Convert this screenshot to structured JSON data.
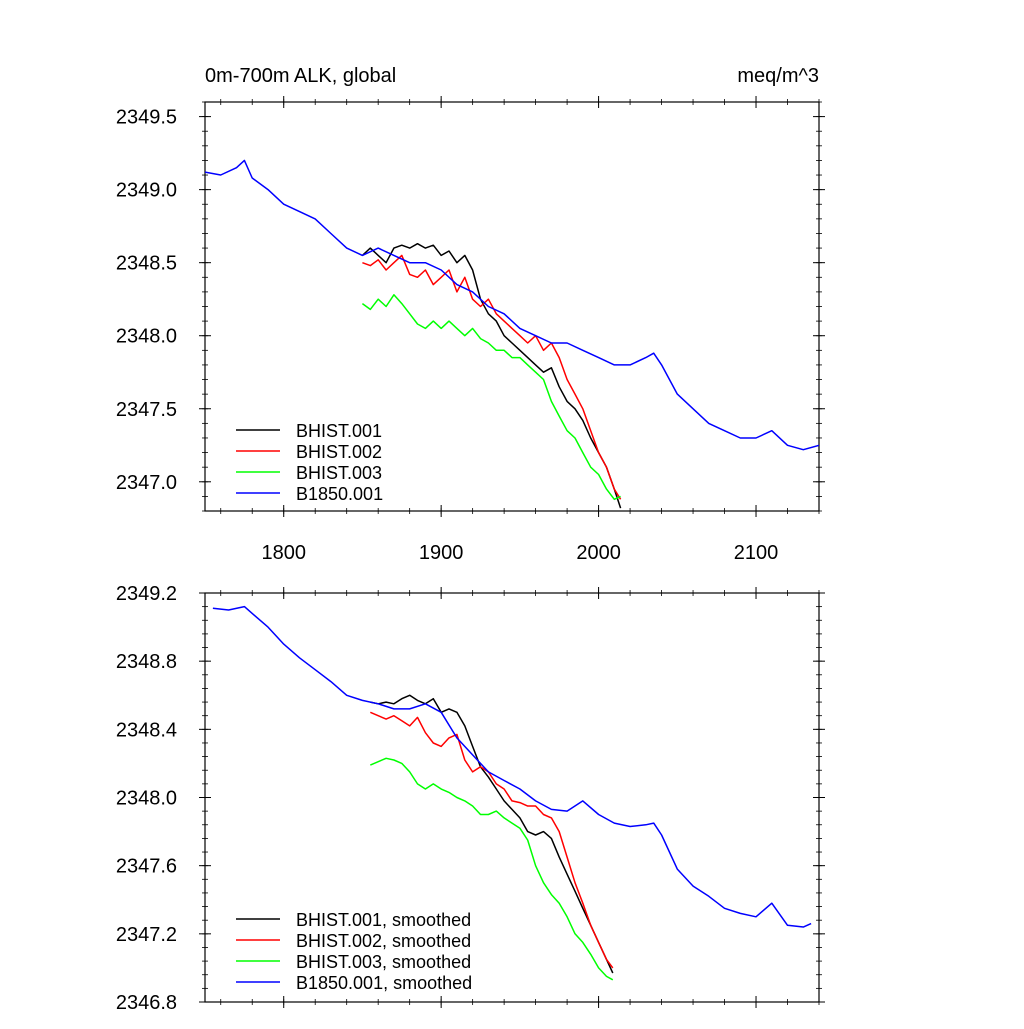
{
  "chart_data": [
    {
      "type": "line",
      "title": "0m-700m ALK, global",
      "units": "meq/m^3",
      "xlim": [
        1750,
        2140
      ],
      "ylim": [
        2346.8,
        2349.6
      ],
      "xticks": [
        1800,
        1900,
        2000,
        2100
      ],
      "yticks": [
        2347.0,
        2347.5,
        2348.0,
        2348.5,
        2349.0,
        2349.5
      ],
      "ytick_labels": [
        "2347.0",
        "2347.5",
        "2348.0",
        "2348.5",
        "2349.0",
        "2349.5"
      ],
      "show_xtick_labels": true,
      "legend_position": "bottom-left",
      "series": [
        {
          "name": "BHIST.001",
          "color": "#000000",
          "x": [
            1850,
            1855,
            1860,
            1865,
            1870,
            1875,
            1880,
            1885,
            1890,
            1895,
            1900,
            1905,
            1910,
            1915,
            1920,
            1925,
            1930,
            1935,
            1940,
            1945,
            1950,
            1955,
            1960,
            1965,
            1970,
            1975,
            1980,
            1985,
            1990,
            1995,
            2000,
            2005,
            2010,
            2014
          ],
          "y": [
            2348.55,
            2348.6,
            2348.55,
            2348.5,
            2348.6,
            2348.62,
            2348.6,
            2348.63,
            2348.6,
            2348.62,
            2348.55,
            2348.58,
            2348.5,
            2348.55,
            2348.45,
            2348.25,
            2348.15,
            2348.1,
            2348.0,
            2347.95,
            2347.9,
            2347.85,
            2347.8,
            2347.75,
            2347.78,
            2347.65,
            2347.55,
            2347.5,
            2347.42,
            2347.3,
            2347.2,
            2347.1,
            2346.95,
            2346.82
          ]
        },
        {
          "name": "BHIST.002",
          "color": "#ff0000",
          "x": [
            1850,
            1855,
            1860,
            1865,
            1870,
            1875,
            1880,
            1885,
            1890,
            1895,
            1900,
            1905,
            1910,
            1915,
            1920,
            1925,
            1930,
            1935,
            1940,
            1945,
            1950,
            1955,
            1960,
            1965,
            1970,
            1975,
            1980,
            1985,
            1990,
            1995,
            2000,
            2005,
            2010,
            2014
          ],
          "y": [
            2348.5,
            2348.48,
            2348.52,
            2348.45,
            2348.5,
            2348.55,
            2348.42,
            2348.4,
            2348.45,
            2348.35,
            2348.4,
            2348.45,
            2348.3,
            2348.4,
            2348.25,
            2348.2,
            2348.25,
            2348.15,
            2348.1,
            2348.05,
            2348.0,
            2347.95,
            2348.0,
            2347.9,
            2347.95,
            2347.85,
            2347.7,
            2347.6,
            2347.5,
            2347.35,
            2347.2,
            2347.1,
            2346.95,
            2346.88
          ]
        },
        {
          "name": "BHIST.003",
          "color": "#00ff00",
          "x": [
            1850,
            1855,
            1860,
            1865,
            1870,
            1875,
            1880,
            1885,
            1890,
            1895,
            1900,
            1905,
            1910,
            1915,
            1920,
            1925,
            1930,
            1935,
            1940,
            1945,
            1950,
            1955,
            1960,
            1965,
            1970,
            1975,
            1980,
            1985,
            1990,
            1995,
            2000,
            2005,
            2010,
            2014
          ],
          "y": [
            2348.22,
            2348.18,
            2348.25,
            2348.2,
            2348.28,
            2348.22,
            2348.15,
            2348.08,
            2348.05,
            2348.1,
            2348.05,
            2348.1,
            2348.05,
            2348.0,
            2348.05,
            2347.98,
            2347.95,
            2347.9,
            2347.9,
            2347.85,
            2347.85,
            2347.8,
            2347.75,
            2347.7,
            2347.55,
            2347.45,
            2347.35,
            2347.3,
            2347.2,
            2347.1,
            2347.05,
            2346.95,
            2346.88,
            2346.9
          ]
        },
        {
          "name": "B1850.001",
          "color": "#0000ff",
          "x": [
            1750,
            1760,
            1770,
            1775,
            1780,
            1790,
            1800,
            1810,
            1820,
            1830,
            1840,
            1850,
            1860,
            1870,
            1880,
            1890,
            1900,
            1910,
            1920,
            1930,
            1940,
            1950,
            1960,
            1970,
            1980,
            1990,
            2000,
            2010,
            2020,
            2030,
            2035,
            2040,
            2050,
            2060,
            2070,
            2080,
            2090,
            2100,
            2110,
            2120,
            2130,
            2140
          ],
          "y": [
            2349.12,
            2349.1,
            2349.15,
            2349.2,
            2349.08,
            2349.0,
            2348.9,
            2348.85,
            2348.8,
            2348.7,
            2348.6,
            2348.55,
            2348.6,
            2348.55,
            2348.5,
            2348.5,
            2348.45,
            2348.35,
            2348.3,
            2348.2,
            2348.15,
            2348.05,
            2348.0,
            2347.95,
            2347.95,
            2347.9,
            2347.85,
            2347.8,
            2347.8,
            2347.85,
            2347.88,
            2347.8,
            2347.6,
            2347.5,
            2347.4,
            2347.35,
            2347.3,
            2347.3,
            2347.35,
            2347.25,
            2347.22,
            2347.25
          ]
        }
      ]
    },
    {
      "type": "line",
      "xlim": [
        1750,
        2140
      ],
      "ylim": [
        2346.8,
        2349.2
      ],
      "xticks": [
        1800,
        1900,
        2000,
        2100
      ],
      "yticks": [
        2346.8,
        2347.2,
        2347.6,
        2348.0,
        2348.4,
        2348.8,
        2349.2
      ],
      "ytick_labels": [
        "2346.8",
        "2347.2",
        "2347.6",
        "2348.0",
        "2348.4",
        "2348.8",
        "2349.2"
      ],
      "show_xtick_labels": false,
      "legend_position": "bottom-left",
      "series": [
        {
          "name": "BHIST.001, smoothed",
          "color": "#000000",
          "x": [
            1855,
            1860,
            1865,
            1870,
            1875,
            1880,
            1885,
            1890,
            1895,
            1900,
            1905,
            1910,
            1915,
            1920,
            1925,
            1930,
            1935,
            1940,
            1945,
            1950,
            1955,
            1960,
            1965,
            1970,
            1975,
            1980,
            1985,
            1990,
            1995,
            2000,
            2005,
            2009
          ],
          "y": [
            2348.56,
            2348.55,
            2348.56,
            2348.55,
            2348.58,
            2348.6,
            2348.57,
            2348.55,
            2348.58,
            2348.5,
            2348.52,
            2348.5,
            2348.42,
            2348.3,
            2348.18,
            2348.12,
            2348.05,
            2347.98,
            2347.93,
            2347.88,
            2347.8,
            2347.78,
            2347.8,
            2347.76,
            2347.65,
            2347.55,
            2347.45,
            2347.35,
            2347.25,
            2347.15,
            2347.05,
            2346.97
          ]
        },
        {
          "name": "BHIST.002, smoothed",
          "color": "#ff0000",
          "x": [
            1855,
            1860,
            1865,
            1870,
            1875,
            1880,
            1885,
            1890,
            1895,
            1900,
            1905,
            1910,
            1915,
            1920,
            1925,
            1930,
            1935,
            1940,
            1945,
            1950,
            1955,
            1960,
            1965,
            1970,
            1975,
            1980,
            1985,
            1990,
            1995,
            2000,
            2005,
            2009
          ],
          "y": [
            2348.5,
            2348.48,
            2348.46,
            2348.48,
            2348.45,
            2348.42,
            2348.47,
            2348.38,
            2348.32,
            2348.3,
            2348.35,
            2348.37,
            2348.22,
            2348.15,
            2348.18,
            2348.15,
            2348.08,
            2348.05,
            2347.98,
            2347.97,
            2347.95,
            2347.95,
            2347.9,
            2347.88,
            2347.8,
            2347.65,
            2347.5,
            2347.38,
            2347.25,
            2347.15,
            2347.05,
            2347.0
          ]
        },
        {
          "name": "BHIST.003, smoothed",
          "color": "#00ff00",
          "x": [
            1855,
            1860,
            1865,
            1870,
            1875,
            1880,
            1885,
            1890,
            1895,
            1900,
            1905,
            1910,
            1915,
            1920,
            1925,
            1930,
            1935,
            1940,
            1945,
            1950,
            1955,
            1960,
            1965,
            1970,
            1975,
            1980,
            1985,
            1990,
            1995,
            2000,
            2005,
            2009
          ],
          "y": [
            2348.19,
            2348.21,
            2348.23,
            2348.22,
            2348.2,
            2348.15,
            2348.08,
            2348.05,
            2348.08,
            2348.05,
            2348.03,
            2348.0,
            2347.98,
            2347.95,
            2347.9,
            2347.9,
            2347.92,
            2347.88,
            2347.85,
            2347.82,
            2347.75,
            2347.6,
            2347.5,
            2347.43,
            2347.38,
            2347.3,
            2347.2,
            2347.15,
            2347.08,
            2347.0,
            2346.95,
            2346.93
          ]
        },
        {
          "name": "B1850.001, smoothed",
          "color": "#0000ff",
          "x": [
            1755,
            1765,
            1775,
            1780,
            1790,
            1800,
            1810,
            1820,
            1830,
            1840,
            1850,
            1860,
            1870,
            1880,
            1890,
            1900,
            1910,
            1920,
            1930,
            1940,
            1950,
            1960,
            1970,
            1980,
            1990,
            2000,
            2010,
            2020,
            2030,
            2035,
            2040,
            2050,
            2060,
            2070,
            2080,
            2090,
            2100,
            2110,
            2120,
            2130,
            2135
          ],
          "y": [
            2349.11,
            2349.1,
            2349.12,
            2349.08,
            2349.0,
            2348.9,
            2348.82,
            2348.75,
            2348.68,
            2348.6,
            2348.57,
            2348.55,
            2348.52,
            2348.52,
            2348.55,
            2348.5,
            2348.35,
            2348.25,
            2348.15,
            2348.1,
            2348.05,
            2347.98,
            2347.93,
            2347.92,
            2347.98,
            2347.9,
            2347.85,
            2347.83,
            2347.84,
            2347.85,
            2347.78,
            2347.58,
            2347.48,
            2347.42,
            2347.35,
            2347.32,
            2347.3,
            2347.38,
            2347.25,
            2347.24,
            2347.26
          ]
        }
      ]
    }
  ]
}
